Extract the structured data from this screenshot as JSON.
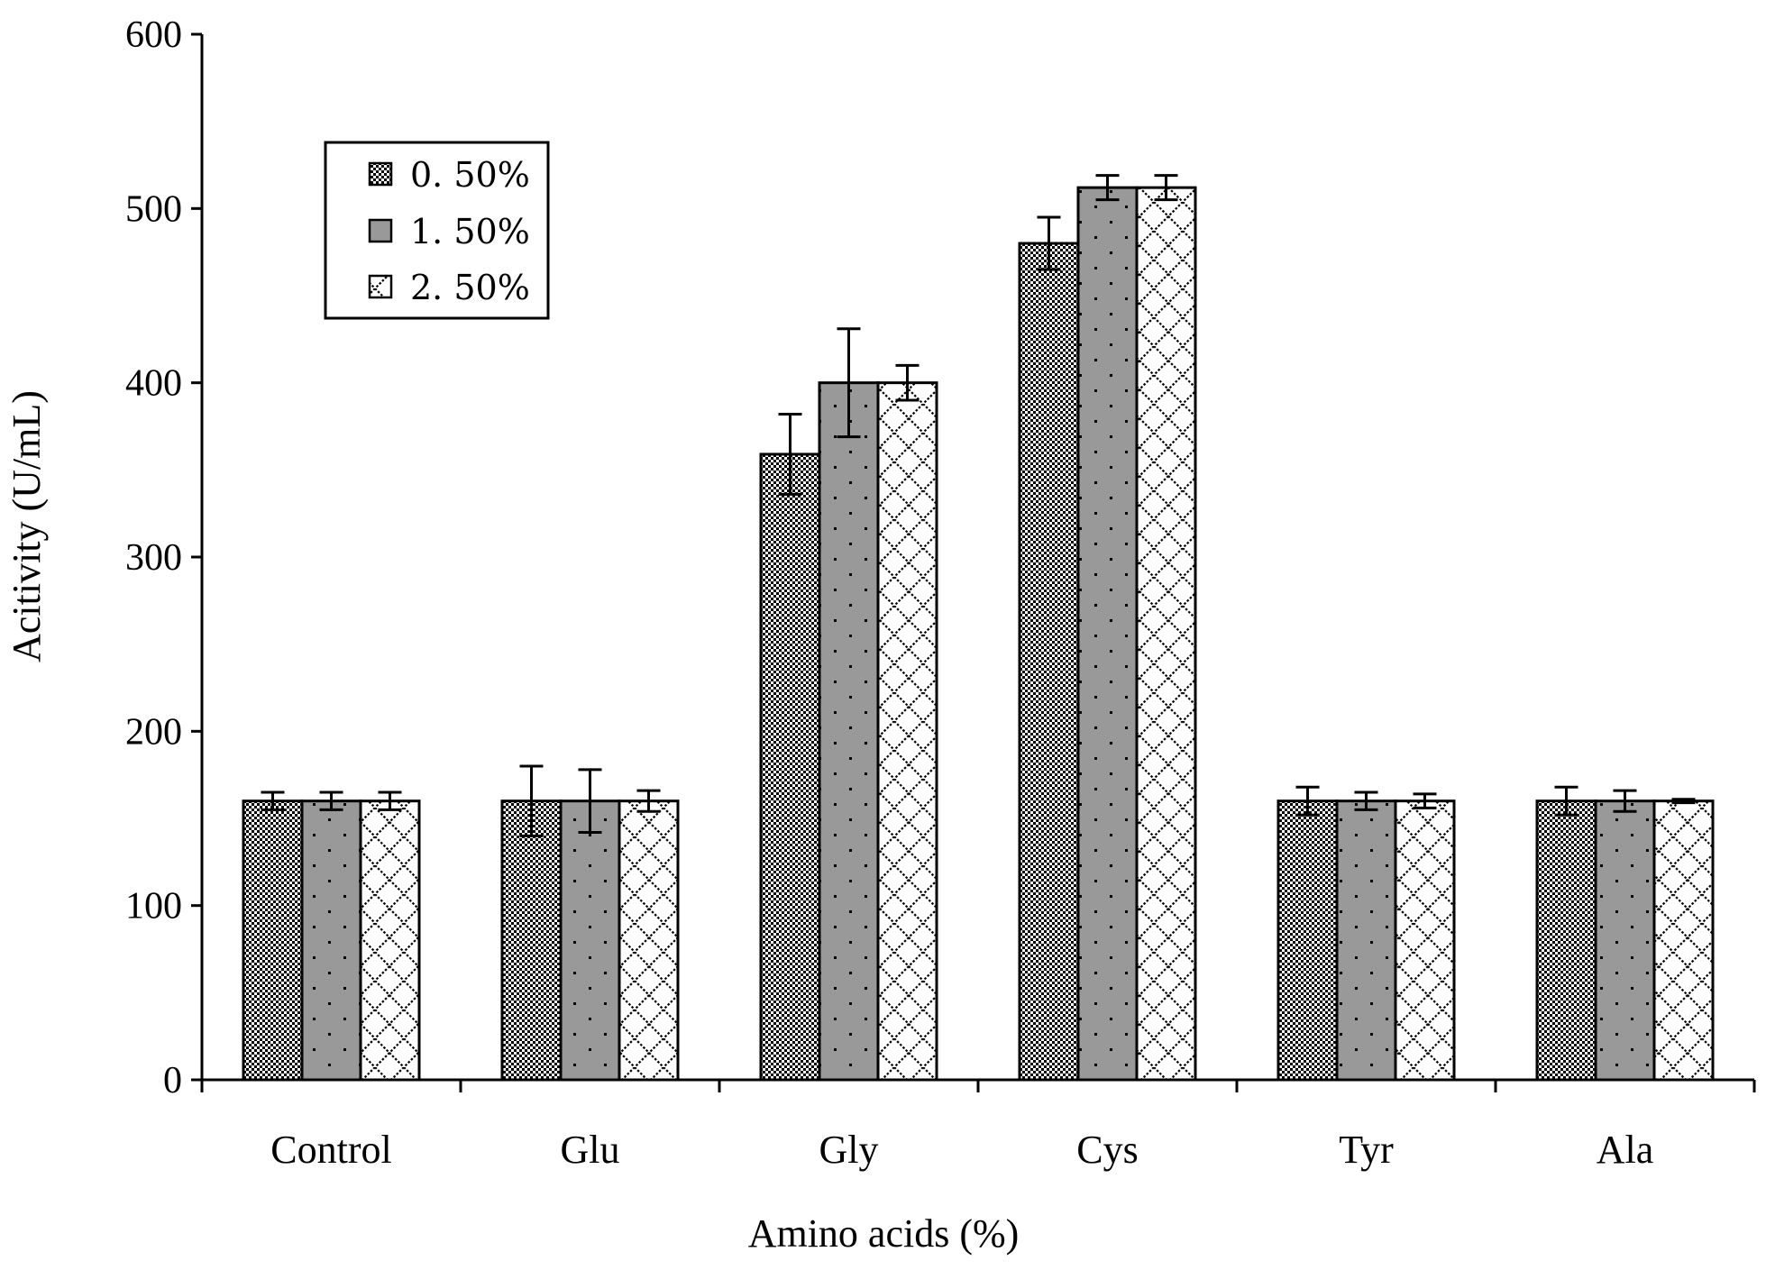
{
  "chart_data": {
    "type": "bar",
    "title": "",
    "xlabel": "Amino acids (%)",
    "ylabel": "Acitivity (U/mL)",
    "ylim": [
      0,
      600
    ],
    "yticks": [
      0,
      100,
      200,
      300,
      400,
      500,
      600
    ],
    "categories": [
      "Control",
      "Glu",
      "Gly",
      "Cys",
      "Tyr",
      "Ala"
    ],
    "series": [
      {
        "name": "0. 50%",
        "pattern": "checker",
        "values": [
          160,
          160,
          359,
          480,
          160,
          160
        ],
        "errors": [
          5,
          20,
          23,
          15,
          8,
          8
        ]
      },
      {
        "name": "1. 50%",
        "pattern": "dots-gray",
        "values": [
          160,
          160,
          400,
          512,
          160,
          160
        ],
        "errors": [
          5,
          18,
          31,
          7,
          5,
          6
        ]
      },
      {
        "name": "2. 50%",
        "pattern": "diamond-lattice",
        "values": [
          160,
          160,
          400,
          512,
          160,
          160
        ],
        "errors": [
          5,
          6,
          10,
          7,
          4,
          1
        ]
      }
    ],
    "legend_position": "top-left",
    "grid": false
  },
  "colors": {
    "ink": "#000000",
    "gray_fill": "#999999",
    "background": "#ffffff"
  }
}
